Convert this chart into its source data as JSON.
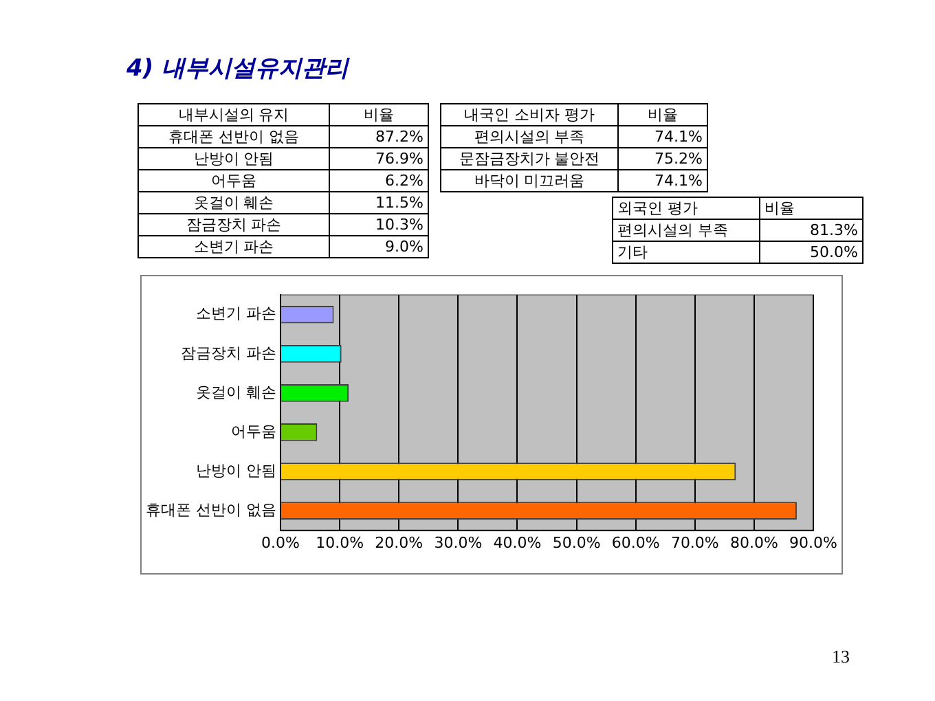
{
  "chart_data": [
    {
      "type": "other",
      "title": "4) 내부시설유지관리",
      "annotations": [
        "내부시설의 유지",
        "비율"
      ],
      "categories": [
        "휴대폰 선반이 없음",
        "난방이 안됨",
        "어두움",
        "옷걸이 훼손",
        "잠금장치 파손",
        "소변기 파손"
      ],
      "values": [
        87.2,
        76.9,
        6.2,
        11.5,
        10.3,
        9.0
      ],
      "value_labels": [
        "87.2%",
        "76.9%",
        "6.2%",
        "11.5%",
        "10.3%",
        "9.0%"
      ]
    },
    {
      "type": "other",
      "annotations": [
        "내국인 소비자 평가",
        "비율"
      ],
      "categories": [
        "편의시설의 부족",
        "문잠금장치가 불안전",
        "바닥이 미끄러움"
      ],
      "values": [
        74.1,
        75.2,
        74.1
      ],
      "value_labels": [
        "74.1%",
        "75.2%",
        "74.1%"
      ]
    },
    {
      "type": "other",
      "annotations": [
        "외국인 평가",
        "비율"
      ],
      "categories": [
        "편의시설의 부족",
        "기타"
      ],
      "values": [
        81.3,
        50.0
      ],
      "value_labels": [
        "81.3%",
        "50.0%"
      ]
    },
    {
      "type": "bar",
      "orientation": "horizontal",
      "categories": [
        "소변기 파손",
        "잠금장치 파손",
        "옷걸이 훼손",
        "어두움",
        "난방이 안됨",
        "휴대폰 선반이 없음"
      ],
      "values": [
        9.0,
        10.3,
        11.5,
        6.2,
        76.9,
        87.2
      ],
      "colors": [
        "#9999ff",
        "#00ffff",
        "#00ee00",
        "#66cc00",
        "#ffcc00",
        "#ff6600"
      ],
      "xlim": [
        0,
        90
      ],
      "xticks": [
        {
          "value": 0,
          "label": "0.0%"
        },
        {
          "value": 10,
          "label": "10.0%"
        },
        {
          "value": 20,
          "label": "20.0%"
        },
        {
          "value": 30,
          "label": "30.0%"
        },
        {
          "value": 40,
          "label": "40.0%"
        },
        {
          "value": 50,
          "label": "50.0%"
        },
        {
          "value": 60,
          "label": "60.0%"
        },
        {
          "value": 70,
          "label": "70.0%"
        },
        {
          "value": 80,
          "label": "80.0%"
        },
        {
          "value": 90,
          "label": "90.0%"
        }
      ],
      "grid": "x",
      "annotations": [
        "13"
      ]
    }
  ]
}
